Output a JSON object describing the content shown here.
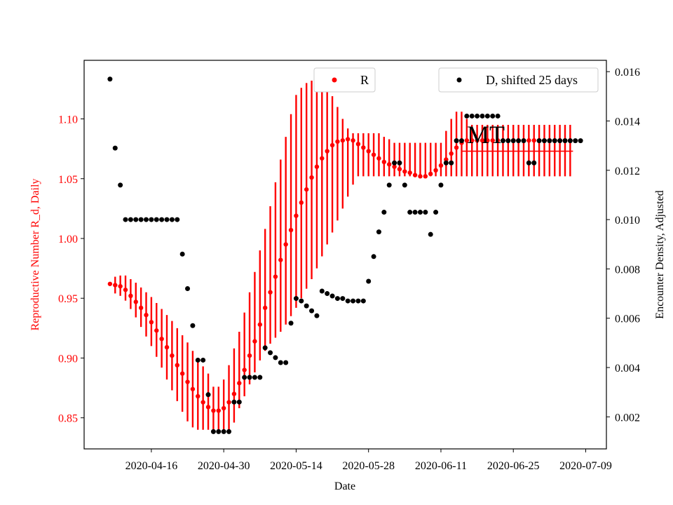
{
  "chart_data": {
    "type": "scatter",
    "title": "",
    "xlabel": "Date",
    "ylabel_left": "Reproductive Number R_d, Daily",
    "ylabel_right": "Encounter Density, Adjusted",
    "x_ticks": [
      "2020-04-16",
      "2020-04-30",
      "2020-05-14",
      "2020-05-28",
      "2020-06-11",
      "2020-06-25",
      "2020-07-09"
    ],
    "y_left_ticks": [
      "0.85",
      "0.90",
      "0.95",
      "1.00",
      "1.05",
      "1.10"
    ],
    "y_right_ticks": [
      "0.002",
      "0.004",
      "0.006",
      "0.008",
      "0.010",
      "0.012",
      "0.014",
      "0.016"
    ],
    "x_range": [
      "2020-04-03",
      "2020-07-13"
    ],
    "y_left_range": [
      0.824,
      1.149
    ],
    "y_right_range": [
      0.0007,
      0.01646
    ],
    "colors": {
      "R": "#ff0000",
      "D": "#000000"
    },
    "annotation": "MT",
    "legend": [
      {
        "label": "R",
        "color": "#ff0000",
        "position": "top-center"
      },
      {
        "label": "D, shifted 25 days",
        "color": "#000000",
        "position": "top-right"
      }
    ],
    "series": [
      {
        "name": "R",
        "axis": "left",
        "start_date": "2020-04-08",
        "values": [
          0.962,
          0.961,
          0.96,
          0.957,
          0.952,
          0.947,
          0.942,
          0.936,
          0.93,
          0.923,
          0.916,
          0.909,
          0.902,
          0.894,
          0.887,
          0.88,
          0.874,
          0.868,
          0.863,
          0.859,
          0.856,
          0.856,
          0.858,
          0.863,
          0.87,
          0.879,
          0.89,
          0.902,
          0.914,
          0.928,
          0.942,
          0.955,
          0.968,
          0.982,
          0.995,
          1.007,
          1.019,
          1.03,
          1.041,
          1.051,
          1.06,
          1.067,
          1.073,
          1.078,
          1.081,
          1.082,
          1.083,
          1.082,
          1.079,
          1.076,
          1.073,
          1.07,
          1.067,
          1.064,
          1.062,
          1.06,
          1.058,
          1.056,
          1.055,
          1.053,
          1.052,
          1.052,
          1.054,
          1.057,
          1.061,
          1.066,
          1.071,
          1.076,
          1.08,
          1.082,
          1.082,
          1.082,
          1.082,
          1.082,
          1.082,
          1.082,
          1.082,
          1.082,
          1.082,
          1.082,
          1.082,
          1.082,
          1.082,
          1.082,
          1.082,
          1.082,
          1.082,
          1.082,
          1.082,
          1.082
        ],
        "error_low": [
          0.962,
          0.954,
          0.952,
          0.948,
          0.941,
          0.934,
          0.926,
          0.918,
          0.91,
          0.901,
          0.892,
          0.882,
          0.873,
          0.864,
          0.855,
          0.847,
          0.842,
          0.84,
          0.84,
          0.84,
          0.84,
          0.84,
          0.84,
          0.84,
          0.846,
          0.858,
          0.868,
          0.878,
          0.888,
          0.898,
          0.906,
          0.912,
          0.917,
          0.922,
          0.928,
          0.935,
          0.942,
          0.95,
          0.958,
          0.966,
          0.975,
          0.985,
          0.995,
          1.005,
          1.015,
          1.025,
          1.035,
          1.045,
          1.052,
          1.052,
          1.052,
          1.052,
          1.052,
          1.052,
          1.052,
          1.052,
          1.052,
          1.052,
          1.052,
          1.052,
          1.052,
          1.052,
          1.052,
          1.052,
          1.052,
          1.052,
          1.052,
          1.052,
          1.052,
          1.052,
          1.052,
          1.052,
          1.052,
          1.052,
          1.052,
          1.052,
          1.052,
          1.052,
          1.052,
          1.052,
          1.052,
          1.052,
          1.052,
          1.052,
          1.052,
          1.052,
          1.052,
          1.052,
          1.052,
          1.052
        ],
        "error_high": [
          0.962,
          0.968,
          0.969,
          0.969,
          0.966,
          0.963,
          0.959,
          0.955,
          0.951,
          0.946,
          0.941,
          0.936,
          0.931,
          0.925,
          0.919,
          0.913,
          0.906,
          0.899,
          0.893,
          0.887,
          0.876,
          0.876,
          0.882,
          0.894,
          0.908,
          0.922,
          0.938,
          0.955,
          0.972,
          0.99,
          1.008,
          1.027,
          1.047,
          1.066,
          1.085,
          1.104,
          1.12,
          1.126,
          1.13,
          1.132,
          1.132,
          1.13,
          1.126,
          1.119,
          1.11,
          1.1,
          1.092,
          1.088,
          1.088,
          1.088,
          1.088,
          1.088,
          1.088,
          1.085,
          1.083,
          1.08,
          1.08,
          1.08,
          1.08,
          1.08,
          1.08,
          1.08,
          1.08,
          1.08,
          1.08,
          1.09,
          1.1,
          1.106,
          1.106,
          1.1,
          1.095,
          1.095,
          1.095,
          1.095,
          1.095,
          1.095,
          1.095,
          1.095,
          1.095,
          1.095,
          1.095,
          1.095,
          1.095,
          1.095,
          1.095,
          1.095,
          1.095,
          1.095,
          1.095,
          1.095
        ]
      },
      {
        "name": "D, shifted 25 days",
        "axis": "right",
        "start_date": "2020-04-08",
        "values": [
          0.0157,
          0.0129,
          0.0114,
          0.01,
          0.01,
          0.01,
          0.01,
          0.01,
          0.01,
          0.01,
          0.01,
          0.01,
          0.01,
          0.01,
          0.0086,
          0.0072,
          0.0057,
          0.0043,
          0.0043,
          0.0029,
          0.0014,
          0.0014,
          0.0014,
          0.0014,
          0.0026,
          0.0026,
          0.0036,
          0.0036,
          0.0036,
          0.0036,
          0.0048,
          0.0046,
          0.0044,
          0.0042,
          0.0042,
          0.0058,
          0.0068,
          0.0067,
          0.0065,
          0.0063,
          0.0061,
          0.0071,
          0.007,
          0.0069,
          0.0068,
          0.0068,
          0.0067,
          0.0067,
          0.0067,
          0.0067,
          0.0075,
          0.0085,
          0.0095,
          0.0103,
          0.0114,
          0.0123,
          0.0123,
          0.0114,
          0.0103,
          0.0103,
          0.0103,
          0.0103,
          0.0094,
          0.0103,
          0.0114,
          0.0123,
          0.0123,
          0.0132,
          0.0132,
          0.0142,
          0.0142,
          0.0142,
          0.0142,
          0.0142,
          0.0142,
          0.0142,
          0.0132,
          0.0132,
          0.0132,
          0.0132,
          0.0132,
          0.0123,
          0.0123,
          0.0132,
          0.0132,
          0.0132,
          0.0132,
          0.0132,
          0.0132,
          0.0132,
          0.0132,
          0.0132
        ]
      }
    ]
  }
}
